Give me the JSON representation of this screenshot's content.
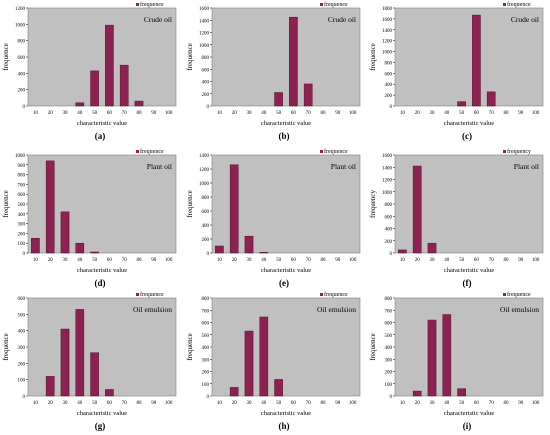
{
  "colors": {
    "plot_bg": "#c0c0c0",
    "bar": "#8b2252",
    "bar_edge": "#5a0f30",
    "text": "#000000",
    "marker": "#8b2252"
  },
  "chart_data": [
    {
      "panel_label": "(a)",
      "type": "bar",
      "title": "Crude oil",
      "legend": "frequence",
      "ylabel": "frequence",
      "xlabel": "characteristic value",
      "categories": [
        "10",
        "20",
        "30",
        "40",
        "50",
        "60",
        "70",
        "80",
        "90",
        "100"
      ],
      "values": [
        0,
        0,
        0,
        40,
        430,
        990,
        500,
        60,
        0,
        0
      ],
      "ylim": [
        0,
        1200
      ],
      "yticks": [
        0,
        200,
        400,
        600,
        800,
        1000,
        1200
      ],
      "legend_position": "top-right"
    },
    {
      "panel_label": "(b)",
      "type": "bar",
      "title": "Crude oil",
      "legend": "frequence",
      "ylabel": "frequence",
      "xlabel": "characteristic value",
      "categories": [
        "10",
        "20",
        "30",
        "40",
        "50",
        "60",
        "70",
        "80",
        "90",
        "100"
      ],
      "values": [
        0,
        0,
        0,
        0,
        220,
        1450,
        360,
        0,
        0,
        0
      ],
      "ylim": [
        0,
        1600
      ],
      "yticks": [
        0,
        200,
        400,
        600,
        800,
        1000,
        1200,
        1400,
        1600
      ],
      "legend_position": "top-right"
    },
    {
      "panel_label": "(c)",
      "type": "bar",
      "title": "Crude oil",
      "legend": "frequence",
      "ylabel": "frequence",
      "xlabel": "characteristic value",
      "categories": [
        "10",
        "20",
        "30",
        "40",
        "50",
        "60",
        "70",
        "80",
        "90",
        "100"
      ],
      "values": [
        0,
        0,
        0,
        0,
        80,
        1670,
        260,
        0,
        0,
        0
      ],
      "ylim": [
        0,
        1800
      ],
      "yticks": [
        0,
        200,
        400,
        600,
        800,
        1000,
        1200,
        1400,
        1600,
        1800
      ],
      "legend_position": "top-right"
    },
    {
      "panel_label": "(d)",
      "type": "bar",
      "title": "Plant oil",
      "legend": "frequence",
      "ylabel": "frequence",
      "xlabel": "characteristic value",
      "categories": [
        "10",
        "20",
        "30",
        "40",
        "50",
        "60",
        "70",
        "80",
        "90",
        "100"
      ],
      "values": [
        150,
        940,
        420,
        100,
        10,
        0,
        0,
        0,
        0,
        0
      ],
      "ylim": [
        0,
        1000
      ],
      "yticks": [
        0,
        100,
        200,
        300,
        400,
        500,
        600,
        700,
        800,
        900,
        1000
      ],
      "legend_position": "top-right"
    },
    {
      "panel_label": "(e)",
      "type": "bar",
      "title": "Plant oil",
      "legend": "frequence",
      "ylabel": "frequence",
      "xlabel": "characteristic value",
      "categories": [
        "10",
        "20",
        "30",
        "40",
        "50",
        "60",
        "70",
        "80",
        "90",
        "100"
      ],
      "values": [
        100,
        1260,
        240,
        10,
        0,
        0,
        0,
        0,
        0,
        0
      ],
      "ylim": [
        0,
        1400
      ],
      "yticks": [
        0,
        200,
        400,
        600,
        800,
        1000,
        1200,
        1400
      ],
      "legend_position": "top-right"
    },
    {
      "panel_label": "(f)",
      "type": "bar",
      "title": "Plant oil",
      "legend": "frequency",
      "ylabel": "frequency",
      "xlabel": "characteristic value",
      "categories": [
        "10",
        "20",
        "30",
        "40",
        "50",
        "60",
        "70",
        "80",
        "90",
        "100"
      ],
      "values": [
        50,
        1420,
        160,
        0,
        0,
        0,
        0,
        0,
        0,
        0
      ],
      "ylim": [
        0,
        1600
      ],
      "yticks": [
        0,
        200,
        400,
        600,
        800,
        1000,
        1200,
        1400,
        1600
      ],
      "legend_position": "top-right"
    },
    {
      "panel_label": "(g)",
      "type": "bar",
      "title": "Oil emulsion",
      "legend": "frequence",
      "ylabel": "frequence",
      "xlabel": "characteristic value",
      "categories": [
        "10",
        "20",
        "30",
        "40",
        "50",
        "60",
        "70",
        "80",
        "90",
        "100"
      ],
      "values": [
        0,
        120,
        410,
        530,
        265,
        40,
        0,
        0,
        0,
        0
      ],
      "ylim": [
        0,
        600
      ],
      "yticks": [
        0,
        100,
        200,
        300,
        400,
        500,
        600
      ],
      "legend_position": "top-right"
    },
    {
      "panel_label": "(h)",
      "type": "bar",
      "title": "Oil emulsion",
      "legend": "frequence",
      "ylabel": "frequence",
      "xlabel": "characteristic value",
      "categories": [
        "10",
        "20",
        "30",
        "40",
        "50",
        "60",
        "70",
        "80",
        "90",
        "100"
      ],
      "values": [
        0,
        70,
        530,
        645,
        135,
        0,
        0,
        0,
        0,
        0
      ],
      "ylim": [
        0,
        800
      ],
      "yticks": [
        0,
        100,
        200,
        300,
        400,
        500,
        600,
        700,
        800
      ],
      "legend_position": "top-right"
    },
    {
      "panel_label": "(i)",
      "type": "bar",
      "title": "Oil emulsion",
      "legend": "frequence",
      "ylabel": "frequence",
      "xlabel": "characteristic value",
      "categories": [
        "10",
        "20",
        "30",
        "40",
        "50",
        "60",
        "70",
        "80",
        "90",
        "100"
      ],
      "values": [
        0,
        40,
        620,
        665,
        60,
        0,
        0,
        0,
        0,
        0
      ],
      "ylim": [
        0,
        800
      ],
      "yticks": [
        0,
        100,
        200,
        300,
        400,
        500,
        600,
        700,
        800
      ],
      "legend_position": "top-right"
    }
  ]
}
